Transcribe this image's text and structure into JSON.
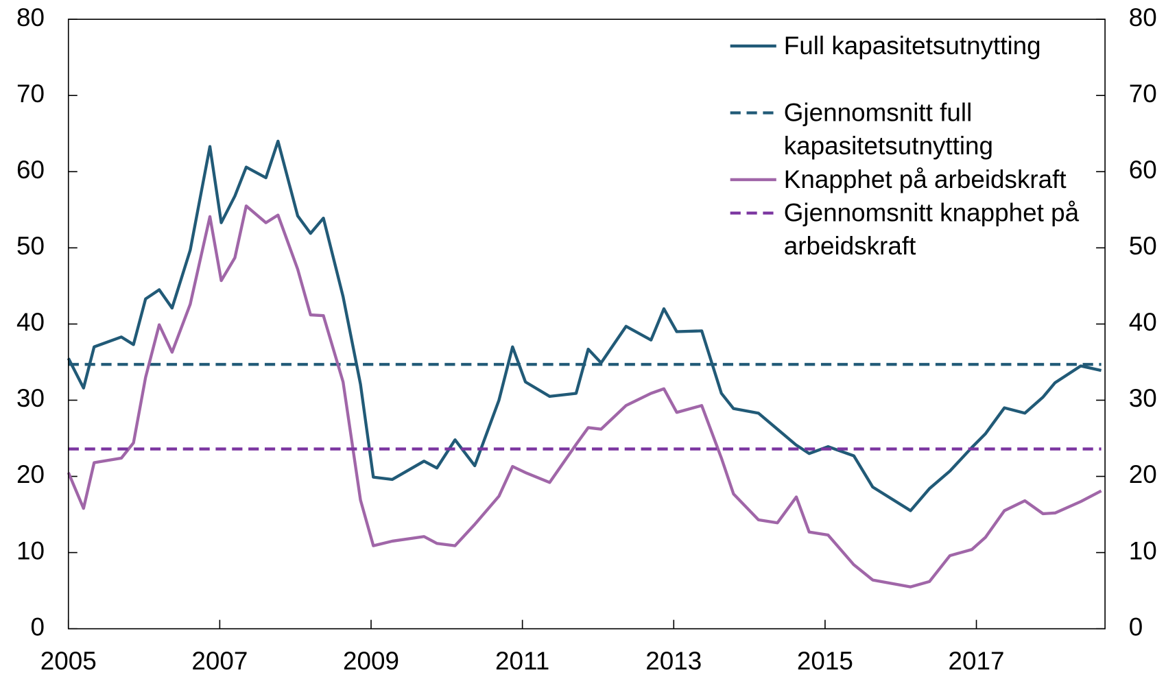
{
  "chart_data": {
    "type": "line",
    "xlim": [
      2005,
      2018.7
    ],
    "xticks": [
      2005,
      2007,
      2009,
      2011,
      2013,
      2015,
      2017
    ],
    "ylim": [
      0,
      80
    ],
    "yticks": [
      0,
      10,
      20,
      30,
      40,
      50,
      60,
      70,
      80
    ],
    "y2lim": [
      0,
      80
    ],
    "y2ticks": [
      0,
      10,
      20,
      30,
      40,
      50,
      60,
      70,
      80
    ],
    "legend": "upper right",
    "series": [
      {
        "name": "Full kapasitetsutnytting",
        "color": "#215a77",
        "dashed": false,
        "x": [
          2005.0,
          2005.2,
          2005.34,
          2005.7,
          2005.86,
          2006.02,
          2006.2,
          2006.37,
          2006.61,
          2006.87,
          2007.02,
          2007.2,
          2007.35,
          2007.61,
          2007.77,
          2008.03,
          2008.2,
          2008.37,
          2008.63,
          2008.86,
          2009.03,
          2009.28,
          2009.7,
          2009.87,
          2010.11,
          2010.37,
          2010.69,
          2010.87,
          2011.04,
          2011.36,
          2011.71,
          2011.87,
          2012.04,
          2012.37,
          2012.7,
          2012.87,
          2013.04,
          2013.37,
          2013.63,
          2013.79,
          2014.12,
          2014.37,
          2014.62,
          2014.79,
          2015.04,
          2015.38,
          2015.63,
          2016.13,
          2016.38,
          2016.65,
          2016.94,
          2017.12,
          2017.37,
          2017.64,
          2017.88,
          2018.04,
          2018.38,
          2018.65
        ],
        "values": [
          35.5,
          31.6,
          37.0,
          38.3,
          37.3,
          43.3,
          44.5,
          42.1,
          49.7,
          63.3,
          53.3,
          56.8,
          60.6,
          59.2,
          64.0,
          54.2,
          51.9,
          53.9,
          43.6,
          32.1,
          19.9,
          19.6,
          22.0,
          21.1,
          24.8,
          21.4,
          30.0,
          37.0,
          32.4,
          30.5,
          30.9,
          36.7,
          34.9,
          39.7,
          37.9,
          42.0,
          39.0,
          39.1,
          30.9,
          28.9,
          28.3,
          26.2,
          24.1,
          23.0,
          23.9,
          22.7,
          18.6,
          15.5,
          18.4,
          20.7,
          23.8,
          25.6,
          29.0,
          28.3,
          30.4,
          32.3,
          34.5,
          33.9
        ]
      },
      {
        "name": "Gjennomsnitt full kapasitetsutnytting",
        "color": "#215a77",
        "dashed": true,
        "x": [
          2005.0,
          2018.65
        ],
        "values": [
          34.7,
          34.7
        ]
      },
      {
        "name": "Knapphet på arbeidskraft",
        "color": "#a066a8",
        "dashed": false,
        "x": [
          2005.0,
          2005.2,
          2005.34,
          2005.7,
          2005.86,
          2006.02,
          2006.2,
          2006.37,
          2006.61,
          2006.87,
          2007.02,
          2007.2,
          2007.35,
          2007.61,
          2007.77,
          2008.03,
          2008.2,
          2008.37,
          2008.63,
          2008.86,
          2009.03,
          2009.28,
          2009.7,
          2009.87,
          2010.11,
          2010.37,
          2010.69,
          2010.87,
          2011.04,
          2011.36,
          2011.71,
          2011.87,
          2012.04,
          2012.37,
          2012.7,
          2012.87,
          2013.04,
          2013.37,
          2013.63,
          2013.79,
          2014.12,
          2014.37,
          2014.62,
          2014.79,
          2015.04,
          2015.38,
          2015.63,
          2016.13,
          2016.38,
          2016.65,
          2016.94,
          2017.12,
          2017.37,
          2017.64,
          2017.88,
          2018.04,
          2018.38,
          2018.65
        ],
        "values": [
          20.5,
          15.8,
          21.8,
          22.4,
          24.4,
          33.0,
          39.9,
          36.3,
          42.6,
          54.1,
          45.7,
          48.7,
          55.5,
          53.3,
          54.3,
          47.2,
          41.2,
          41.1,
          32.4,
          16.9,
          10.9,
          11.5,
          12.1,
          11.2,
          10.9,
          13.7,
          17.4,
          21.3,
          20.5,
          19.2,
          24.2,
          26.4,
          26.2,
          29.3,
          30.9,
          31.5,
          28.4,
          29.3,
          22.4,
          17.7,
          14.3,
          13.9,
          17.3,
          12.7,
          12.3,
          8.4,
          6.4,
          5.5,
          6.2,
          9.6,
          10.4,
          12.0,
          15.5,
          16.8,
          15.1,
          15.2,
          16.7,
          18.1
        ]
      },
      {
        "name": "Gjennomsnitt knapphet på arbeidskraft",
        "color": "#7b35a0",
        "dashed": true,
        "x": [
          2005.0,
          2018.65
        ],
        "values": [
          23.6,
          23.6
        ]
      }
    ]
  }
}
